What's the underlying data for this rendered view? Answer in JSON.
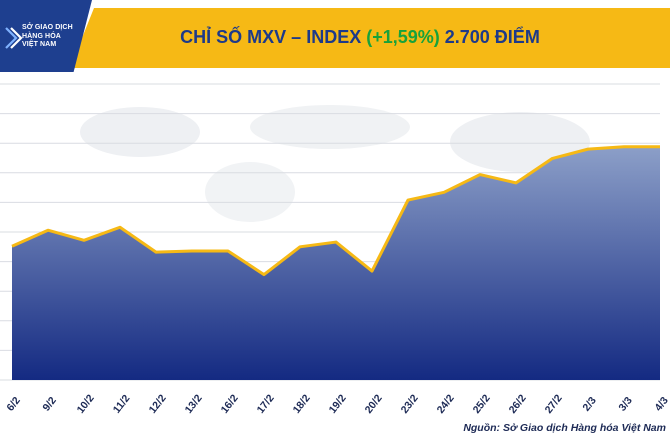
{
  "header": {
    "logo_lines": [
      "SỞ GIAO DỊCH",
      "HÀNG HÓA",
      "VIỆT NAM"
    ],
    "title_prefix": "CHỈ SỐ MXV – INDEX ",
    "title_change": "(+1,59%)",
    "title_suffix": " 2.700 ĐIỂM",
    "colors": {
      "brand_blue": "#1e3f8f",
      "banner_yellow": "#f6b915",
      "change_green": "#17a23b"
    }
  },
  "chart_data": {
    "type": "area",
    "categories": [
      "6/2",
      "9/2",
      "10/2",
      "11/2",
      "12/2",
      "13/2",
      "16/2",
      "17/2",
      "18/2",
      "19/2",
      "20/2",
      "23/2",
      "24/2",
      "25/2",
      "26/2",
      "27/2",
      "2/3",
      "3/3",
      "4/3"
    ],
    "values": [
      2526,
      2553,
      2536,
      2558,
      2516,
      2518,
      2518,
      2478,
      2525,
      2533,
      2484,
      2604,
      2617,
      2647,
      2633,
      2674,
      2690,
      2694,
      2694
    ],
    "ylim": [
      2300,
      2800
    ],
    "grid": true,
    "colors": {
      "line": "#f6b915",
      "area_top": "#8c9fc8",
      "area_bottom": "#142a82"
    }
  },
  "source": "Nguồn: Sở Giao dịch Hàng hóa Việt Nam"
}
